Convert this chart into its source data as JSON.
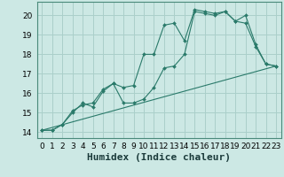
{
  "xlabel": "Humidex (Indice chaleur)",
  "background_color": "#cce8e4",
  "grid_color": "#aacfca",
  "line_color": "#2a7a6a",
  "xlim": [
    -0.5,
    23.5
  ],
  "ylim": [
    13.7,
    20.7
  ],
  "yticks": [
    14,
    15,
    16,
    17,
    18,
    19,
    20
  ],
  "xticks": [
    0,
    1,
    2,
    3,
    4,
    5,
    6,
    7,
    8,
    9,
    10,
    11,
    12,
    13,
    14,
    15,
    16,
    17,
    18,
    19,
    20,
    21,
    22,
    23
  ],
  "line1_x": [
    0,
    1,
    2,
    3,
    4,
    5,
    6,
    7,
    8,
    9,
    10,
    11,
    12,
    13,
    14,
    15,
    16,
    17,
    18,
    19,
    20,
    21,
    22,
    23
  ],
  "line1_y": [
    14.1,
    14.1,
    14.4,
    15.1,
    15.4,
    15.5,
    16.2,
    16.5,
    16.3,
    16.4,
    18.0,
    18.0,
    19.5,
    19.6,
    18.7,
    20.3,
    20.2,
    20.1,
    20.2,
    19.7,
    19.6,
    18.4,
    17.5,
    17.4
  ],
  "line2_x": [
    0,
    1,
    2,
    3,
    4,
    5,
    6,
    7,
    8,
    9,
    10,
    11,
    12,
    13,
    14,
    15,
    16,
    17,
    18,
    19,
    20,
    21,
    22,
    23
  ],
  "line2_y": [
    14.1,
    14.1,
    14.4,
    15.0,
    15.5,
    15.3,
    16.1,
    16.5,
    15.5,
    15.5,
    15.7,
    16.3,
    17.3,
    17.4,
    18.0,
    20.2,
    20.1,
    20.0,
    20.2,
    19.7,
    20.0,
    18.5,
    17.5,
    17.4
  ],
  "line3_x": [
    0,
    23
  ],
  "line3_y": [
    14.1,
    17.4
  ],
  "xlabel_fontsize": 8,
  "tick_fontsize": 6.5
}
